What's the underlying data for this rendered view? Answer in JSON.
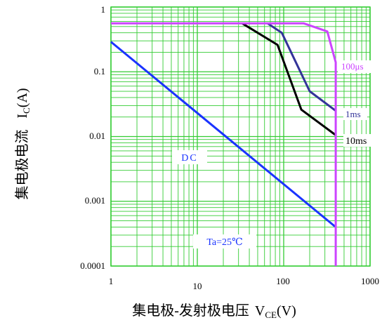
{
  "chart_data": {
    "type": "line",
    "xscale": "log",
    "yscale": "log",
    "xlim": [
      1,
      1000
    ],
    "ylim": [
      0.0001,
      1
    ],
    "grid": true,
    "x_ticks": [
      "1",
      "10",
      "100",
      "1000"
    ],
    "y_ticks": [
      "1",
      "0.1",
      "0.01",
      "0.001",
      "0.0001"
    ],
    "ylabel_text": "集电极电流",
    "ylabel_symbol": "I",
    "ylabel_sub": "C",
    "ylabel_unit": "(A)",
    "xlabel_text": "集电极-发射极电压",
    "xlabel_symbol": "V",
    "xlabel_sub": "CE",
    "xlabel_unit": "(V)",
    "annotation": "Ta=25℃",
    "colors": {
      "grid": "#33cc33",
      "axes": "#33cc33"
    },
    "series": [
      {
        "name": "DC",
        "color": "#1a33ff",
        "x": [
          1,
          400
        ],
        "y": [
          0.29,
          0.0004
        ]
      },
      {
        "name": "10ms",
        "color": "#000000",
        "x": [
          33,
          85,
          160,
          400
        ],
        "y": [
          0.56,
          0.26,
          0.026,
          0.0105
        ]
      },
      {
        "name": "1ms",
        "color": "#333399",
        "x": [
          65,
          95,
          200,
          400
        ],
        "y": [
          0.56,
          0.4,
          0.05,
          0.025
        ]
      },
      {
        "name": "100μs",
        "color": "#cc44ff",
        "x": [
          1,
          170,
          320,
          400,
          400
        ],
        "y": [
          0.56,
          0.56,
          0.42,
          0.14,
          0.0001
        ]
      }
    ],
    "labels": {
      "dc": "DC",
      "ms10": "10ms",
      "ms1": "1ms",
      "us100": "100μs"
    }
  }
}
